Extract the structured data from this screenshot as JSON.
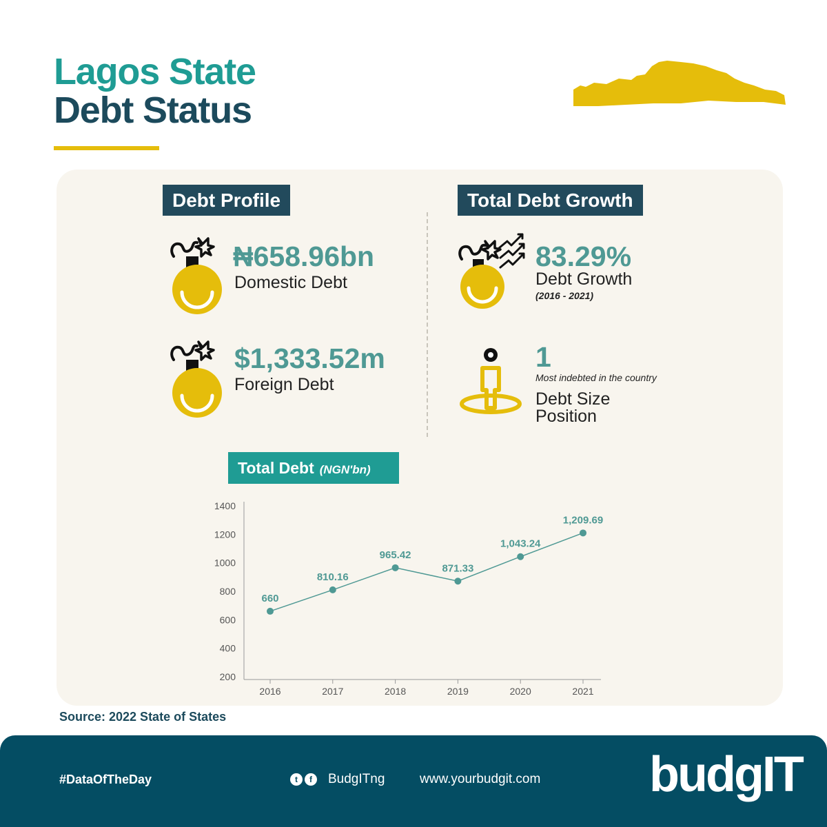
{
  "header": {
    "title_line1": "Lagos State",
    "title_line2": "Debt Status"
  },
  "profile": {
    "heading": "Debt Profile",
    "domestic_value": "₦658.96bn",
    "domestic_label": "Domestic Debt",
    "foreign_value": "$1,333.52m",
    "foreign_label": "Foreign Debt"
  },
  "growth": {
    "heading": "Total Debt Growth",
    "rate_value": "83.29%",
    "rate_label": "Debt Growth",
    "rate_period": "(2016 - 2021)",
    "position_value": "1",
    "position_note": "Most indebted in the country",
    "position_label_line1": "Debt Size",
    "position_label_line2": "Position"
  },
  "chart_heading": {
    "label": "Total Debt",
    "unit": "(NGN'bn)"
  },
  "chart_data": {
    "type": "line",
    "x": [
      "2016",
      "2017",
      "2018",
      "2019",
      "2020",
      "2021"
    ],
    "series": [
      {
        "values": [
          660,
          810.16,
          965.42,
          871.33,
          1043.24,
          1209.69
        ]
      }
    ],
    "data_labels": [
      "660",
      "810.16",
      "965.42",
      "871.33",
      "1,043.24",
      "1,209.69"
    ],
    "y_ticks": [
      200,
      400,
      600,
      800,
      1000,
      1200,
      1400
    ],
    "ylim": [
      200,
      1400
    ],
    "grid": false,
    "color": "#4f9994"
  },
  "source": "Source: 2022 State of States",
  "footer": {
    "hashtag": "#DataOfTheDay",
    "handle": "BudgITng",
    "website": "www.yourbudgit.com",
    "logo": "budgIT"
  },
  "colors": {
    "teal": "#1f9c94",
    "navy": "#1c4a5c",
    "gold": "#e5bd0b",
    "footer": "#044d63",
    "panel": "#f8f5ee"
  }
}
